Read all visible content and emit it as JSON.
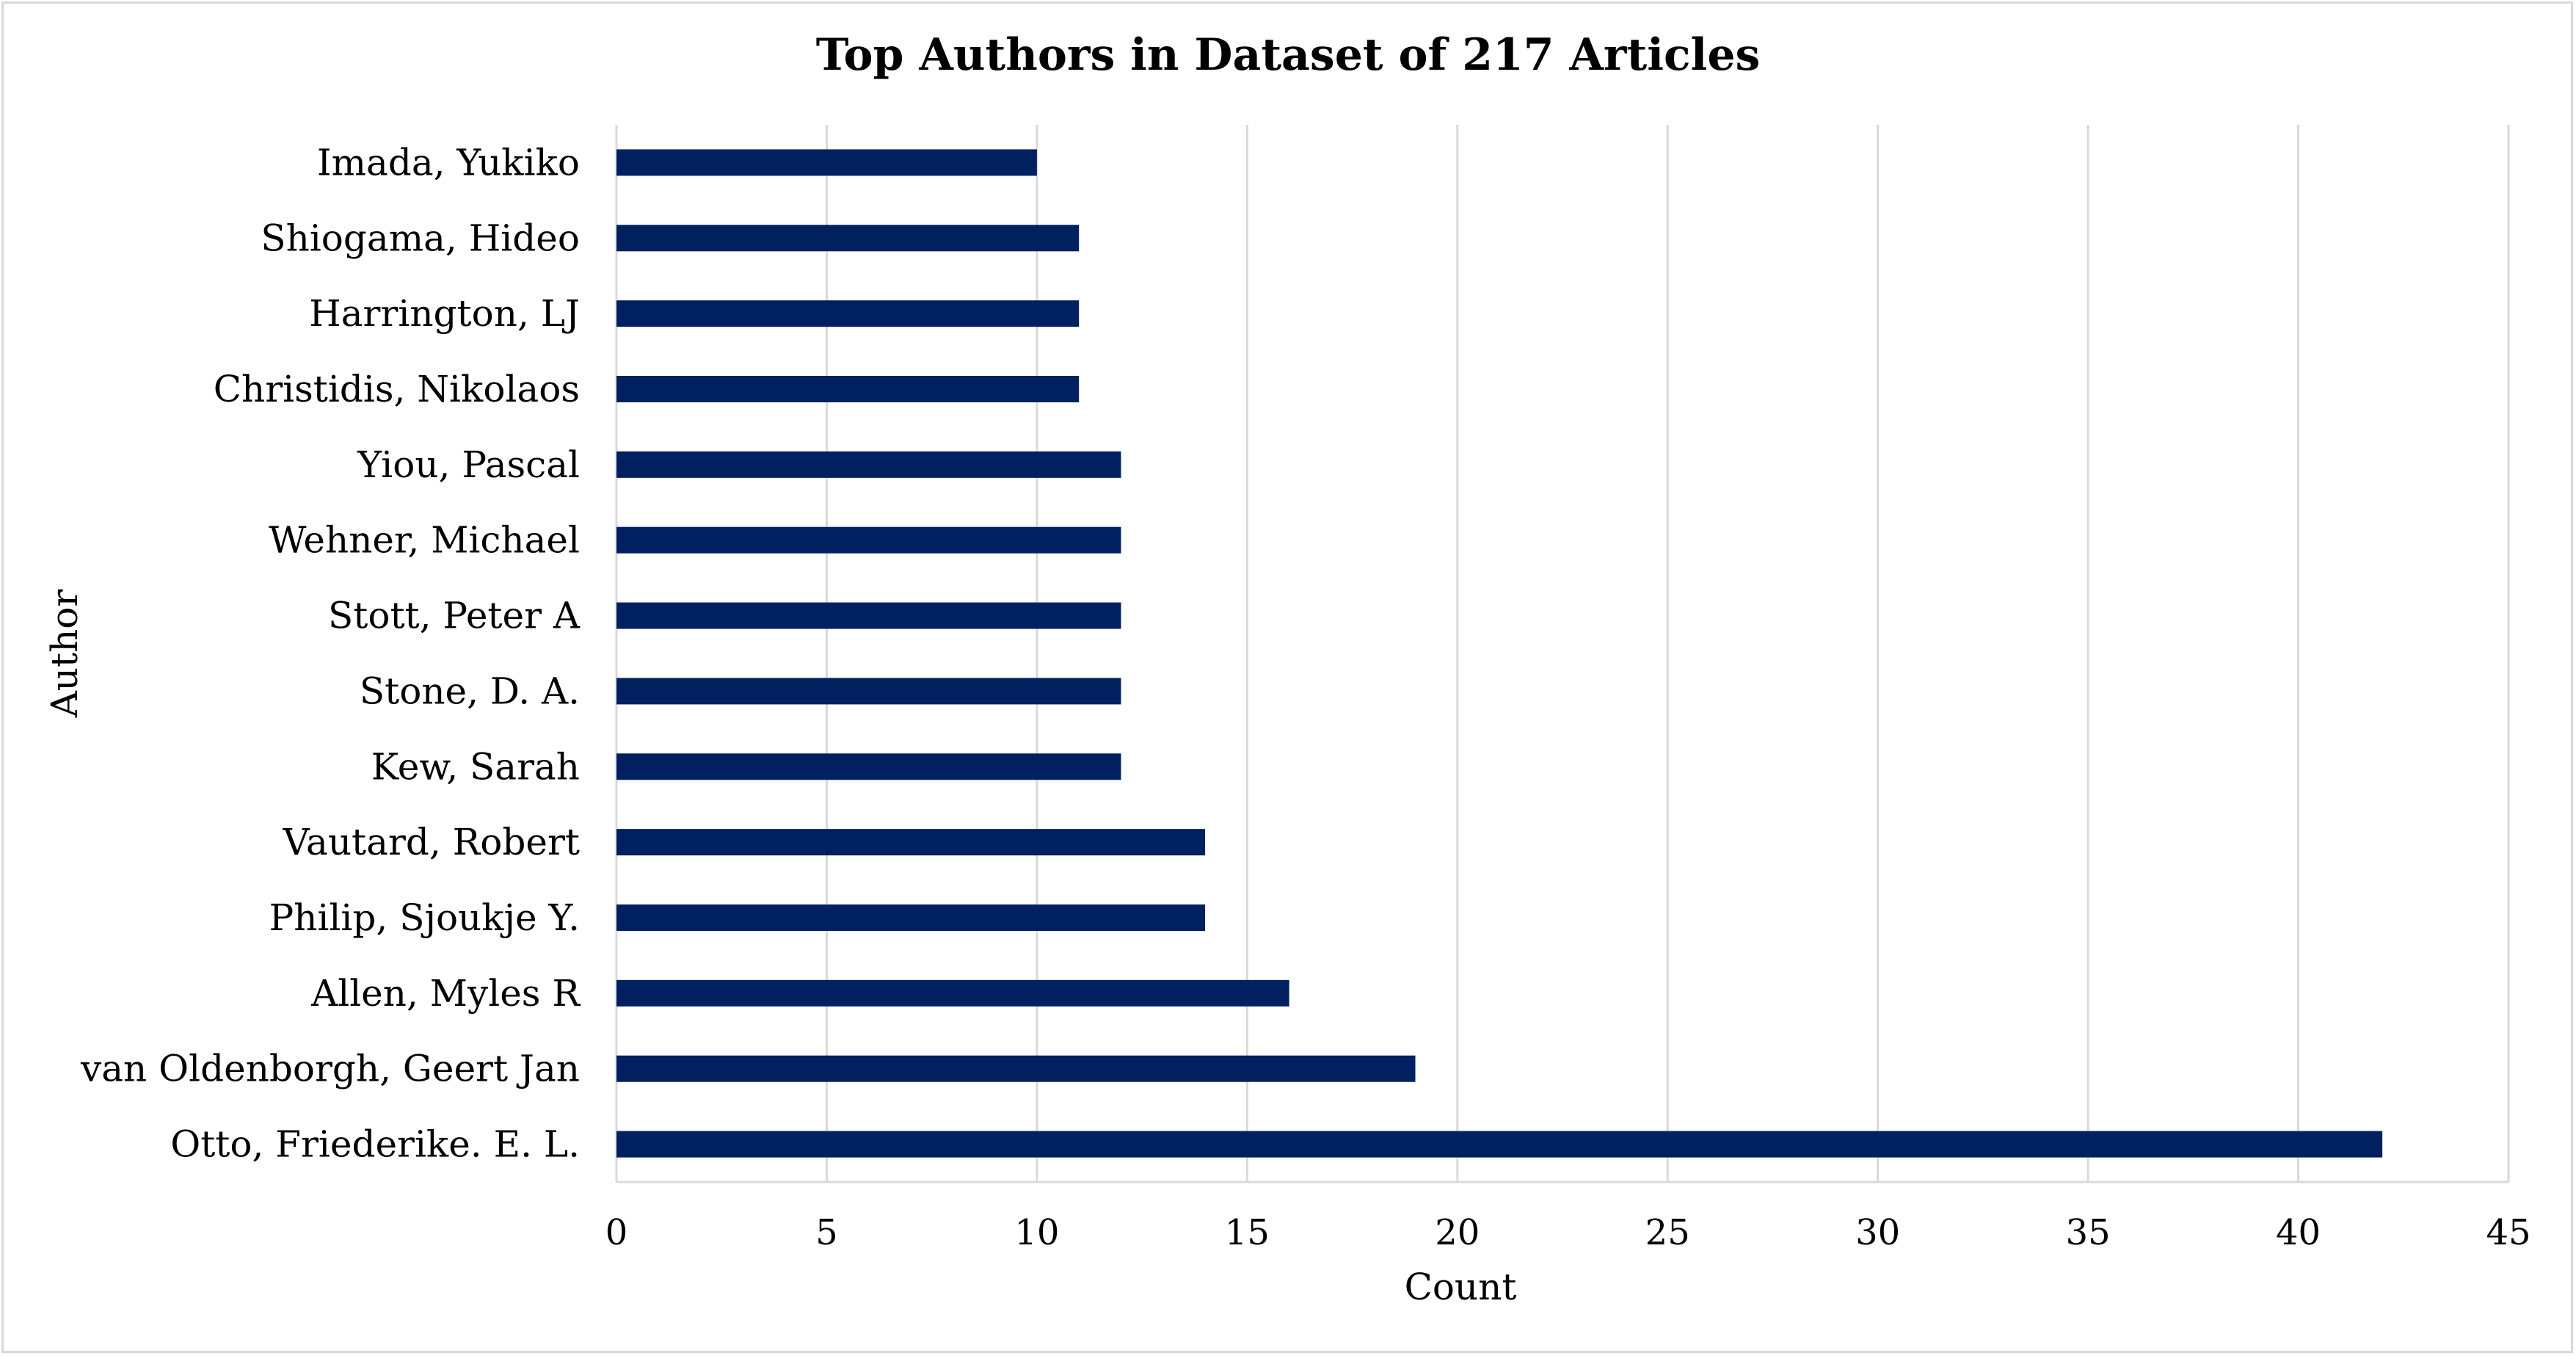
{
  "chart_data": {
    "type": "bar",
    "orientation": "horizontal",
    "title": "Top Authors in Dataset of 217 Articles",
    "xlabel": "Count",
    "ylabel": "Author",
    "xlim": [
      0,
      45
    ],
    "x_ticks": [
      0,
      5,
      10,
      15,
      20,
      25,
      30,
      35,
      40,
      45
    ],
    "grid": "vertical",
    "legend": "none",
    "bar_color": "#002060",
    "categories": [
      "Imada, Yukiko",
      "Shiogama, Hideo",
      "Harrington, LJ",
      "Christidis, Nikolaos",
      "Yiou, Pascal",
      "Wehner, Michael",
      "Stott, Peter A",
      "Stone, D. A.",
      "Kew, Sarah",
      "Vautard, Robert",
      "Philip, Sjoukje Y.",
      "Allen, Myles R",
      "van Oldenborgh, Geert Jan",
      "Otto, Friederike. E. L."
    ],
    "values": [
      10,
      11,
      11,
      11,
      12,
      12,
      12,
      12,
      12,
      14,
      14,
      16,
      19,
      42
    ]
  }
}
